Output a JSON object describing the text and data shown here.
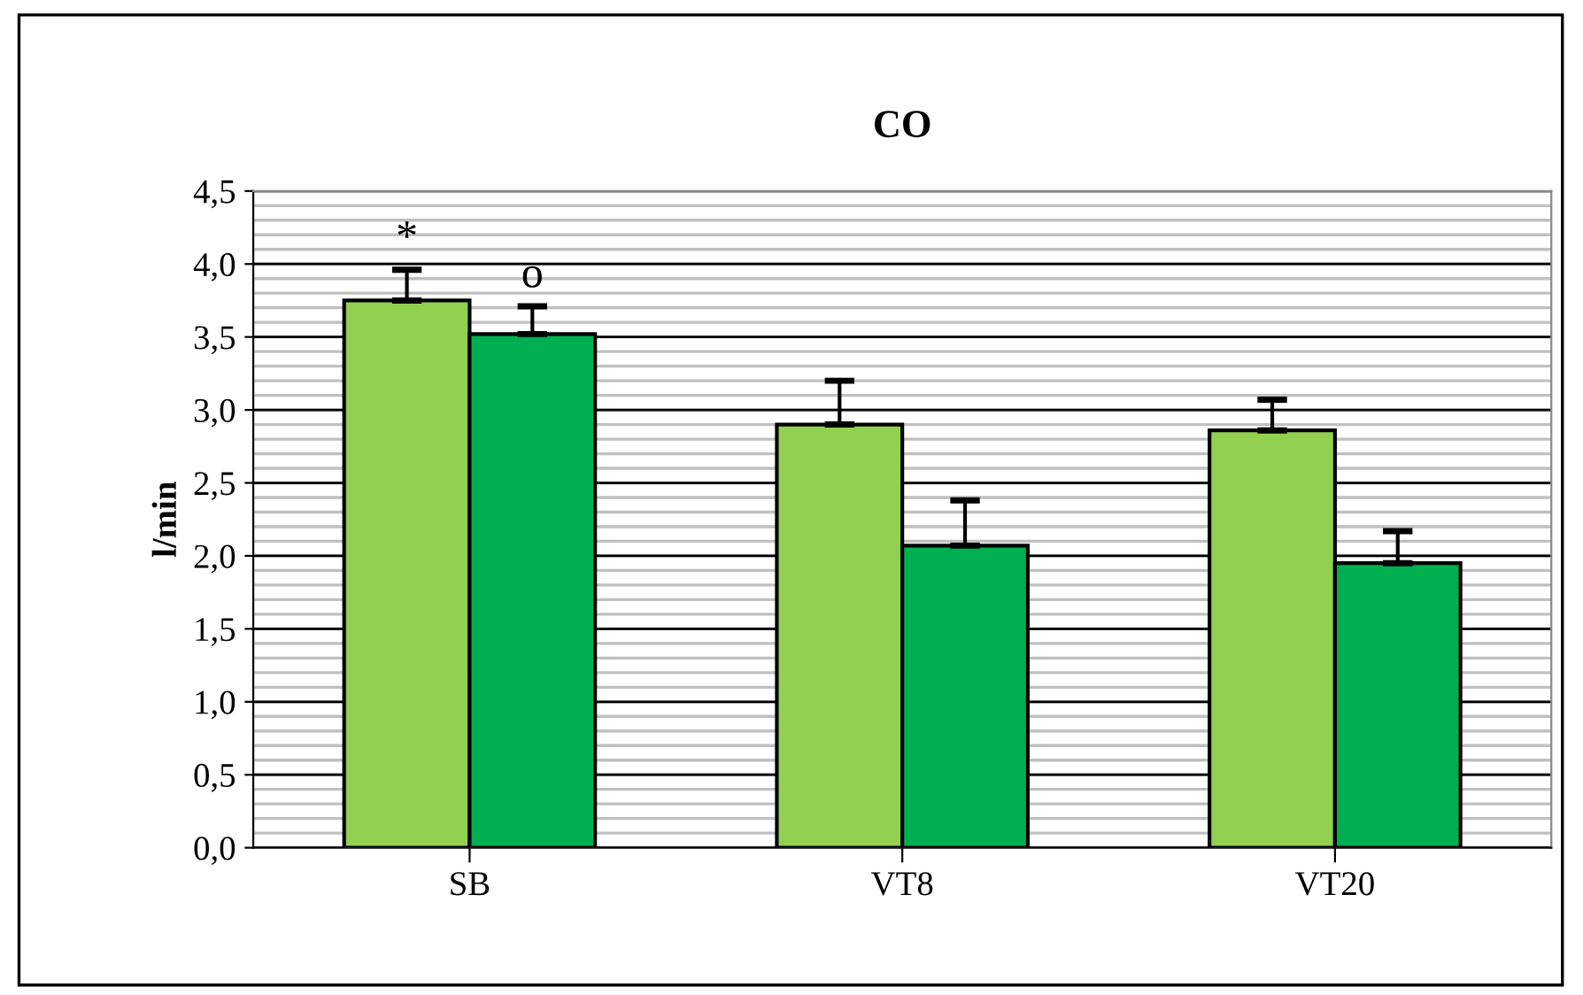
{
  "chart_data": {
    "type": "bar",
    "title": "CO",
    "ylabel": "l/min",
    "categories": [
      "SB",
      "VT8",
      "VT20"
    ],
    "series": [
      {
        "color": "#92d050",
        "values": [
          3.75,
          2.9,
          2.86
        ],
        "errors": [
          [
            3.75,
            3.96
          ],
          [
            2.9,
            3.2
          ],
          [
            2.86,
            3.07
          ]
        ]
      },
      {
        "color": "#00b050",
        "values": [
          3.52,
          2.07,
          1.95
        ],
        "errors": [
          [
            3.52,
            3.71
          ],
          [
            2.07,
            2.38
          ],
          [
            1.95,
            2.17
          ]
        ]
      }
    ],
    "ylim": [
      0,
      4.5
    ],
    "yticks": [
      {
        "value": 0,
        "label": "0,0"
      },
      {
        "value": 0.5,
        "label": "0,5"
      },
      {
        "value": 1,
        "label": "1,0"
      },
      {
        "value": 1.5,
        "label": "1,5"
      },
      {
        "value": 2,
        "label": "2,0"
      },
      {
        "value": 2.5,
        "label": "2,5"
      },
      {
        "value": 3,
        "label": "3,0"
      },
      {
        "value": 3.5,
        "label": "3,5"
      },
      {
        "value": 4,
        "label": "4,0"
      },
      {
        "value": 4.5,
        "label": "4,5"
      }
    ],
    "grid": "y",
    "legend": false,
    "annotations": [
      "*",
      "o"
    ]
  }
}
